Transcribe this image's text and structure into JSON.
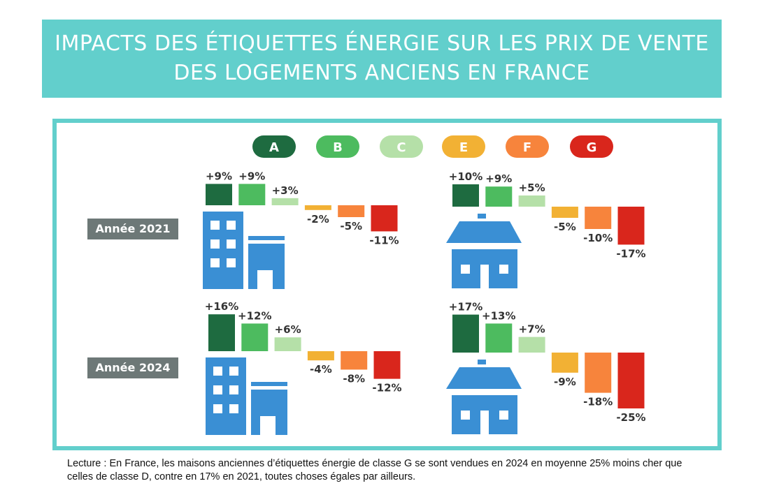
{
  "title": "IMPACTS DES ÉTIQUETTES ÉNERGIE SUR LES PRIX DE VENTE DES LOGEMENTS ANCIENS EN FRANCE",
  "footnote": "Lecture : En France, les maisons anciennes d’étiquettes énergie de classe G se sont vendues en 2024 en moyenne 25% moins cher que celles de classe D, contre en 17% en 2021, toutes choses égales par ailleurs.",
  "chart_data": {
    "type": "bar",
    "categories": [
      "A",
      "B",
      "C",
      "E",
      "F",
      "G"
    ],
    "colors": [
      "#1e6b40",
      "#4dbb5f",
      "#b5e0a8",
      "#f2b134",
      "#f7843c",
      "#d9261c"
    ],
    "panels": [
      {
        "year_label": "Année 2021",
        "housing": "apartment",
        "icon": "apartment-building-icon",
        "values": [
          9,
          9,
          3,
          -2,
          -5,
          -11
        ],
        "labels": [
          "+9%",
          "+9%",
          "+3%",
          "-2%",
          "-5%",
          "-11%"
        ]
      },
      {
        "year_label": "Année 2021",
        "housing": "house",
        "icon": "house-icon",
        "values": [
          10,
          9,
          5,
          -5,
          -10,
          -17
        ],
        "labels": [
          "+10%",
          "+9%",
          "+5%",
          "-5%",
          "-10%",
          "-17%"
        ]
      },
      {
        "year_label": "Année 2024",
        "housing": "apartment",
        "icon": "apartment-building-icon",
        "values": [
          16,
          12,
          6,
          -4,
          -8,
          -12
        ],
        "labels": [
          "+16%",
          "+12%",
          "+6%",
          "-4%",
          "-8%",
          "-12%"
        ]
      },
      {
        "year_label": "Année 2024",
        "housing": "house",
        "icon": "house-icon",
        "values": [
          17,
          13,
          7,
          -9,
          -18,
          -25
        ],
        "labels": [
          "+17%",
          "+13%",
          "+7%",
          "-9%",
          "-18%",
          "-25%"
        ]
      }
    ]
  }
}
